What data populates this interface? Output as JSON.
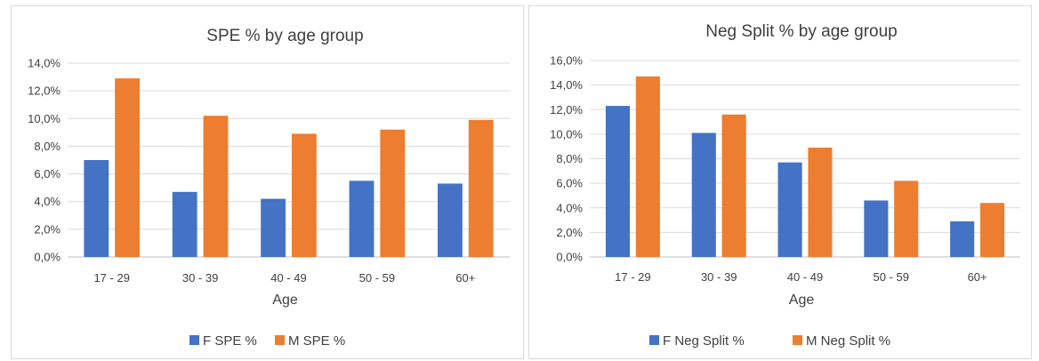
{
  "colors": {
    "female": "#4472C4",
    "male": "#ED7D31"
  },
  "chart_data": [
    {
      "type": "bar",
      "title": "SPE % by age group",
      "xlabel": "Age",
      "ylabel": "",
      "categories": [
        "17 - 29",
        "30 - 39",
        "40 - 49",
        "50 - 59",
        "60+"
      ],
      "ylim": [
        0,
        14
      ],
      "yticks": [
        "0,0%",
        "2,0%",
        "4,0%",
        "6,0%",
        "8,0%",
        "10,0%",
        "12,0%",
        "14,0%"
      ],
      "grid": true,
      "legend_position": "bottom",
      "series": [
        {
          "name": "F SPE %",
          "values": [
            7.0,
            4.7,
            4.2,
            5.5,
            5.3
          ],
          "color": "#4472C4"
        },
        {
          "name": "M SPE %",
          "values": [
            12.9,
            10.2,
            8.9,
            9.2,
            9.9
          ],
          "color": "#ED7D31"
        }
      ]
    },
    {
      "type": "bar",
      "title": "Neg Split % by age group",
      "xlabel": "Age",
      "ylabel": "",
      "categories": [
        "17 - 29",
        "30 - 39",
        "40 - 49",
        "50 - 59",
        "60+"
      ],
      "ylim": [
        0,
        16
      ],
      "yticks": [
        "0,0%",
        "2,0%",
        "4,0%",
        "6,0%",
        "8,0%",
        "10,0%",
        "12,0%",
        "14,0%",
        "16,0%"
      ],
      "grid": true,
      "legend_position": "bottom",
      "series": [
        {
          "name": "F Neg Split %",
          "values": [
            12.3,
            10.1,
            7.7,
            4.6,
            2.9
          ],
          "color": "#4472C4"
        },
        {
          "name": "M Neg Split %",
          "values": [
            14.7,
            11.6,
            8.9,
            6.2,
            4.4
          ],
          "color": "#ED7D31"
        }
      ]
    }
  ]
}
